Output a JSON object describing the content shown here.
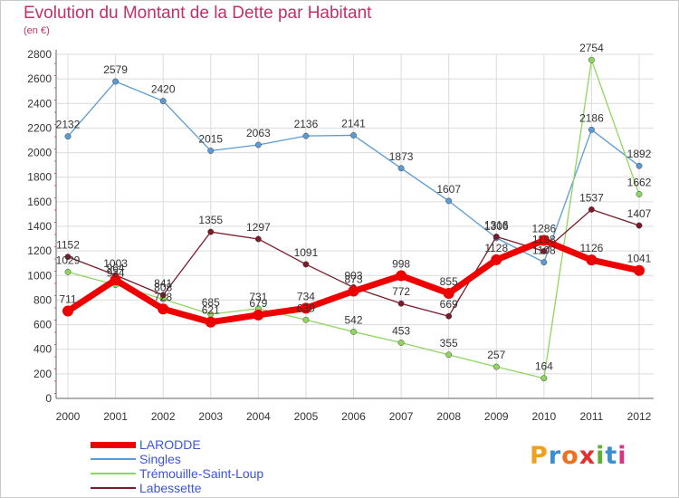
{
  "title": "Evolution du Montant de la Dette par Habitant",
  "subtitle": "(en €)",
  "logo": {
    "text": "Proxiti",
    "letters": [
      "P",
      "r",
      "o",
      "x",
      "i",
      "t",
      "i"
    ],
    "colors": [
      "#f0a020",
      "#3a8fd0",
      "#f07020",
      "#e03030",
      "#60b030",
      "#3a8fd0",
      "#e03080"
    ]
  },
  "chart_data": {
    "type": "line",
    "x": [
      "2000",
      "2001",
      "2002",
      "2003",
      "2004",
      "2005",
      "2006",
      "2007",
      "2008",
      "2009",
      "2010",
      "2011",
      "2012"
    ],
    "ylim": [
      0,
      2800
    ],
    "yticks": [
      "0",
      "200",
      "400",
      "600",
      "800",
      "1000",
      "1200",
      "1400",
      "1600",
      "1800",
      "2000",
      "2200",
      "2400",
      "2600",
      "2800"
    ],
    "grid": true,
    "legend_position": "bottom-left",
    "series": [
      {
        "name": "Singles",
        "color": "#5b9bd5",
        "values": [
          2132,
          2579,
          2420,
          2015,
          2063,
          2136,
          2141,
          1873,
          1607,
          1306,
          1108,
          2186,
          1892
        ],
        "labels": [
          "2132",
          "2579",
          "2420",
          "2015",
          "2063",
          "2136",
          "2141",
          "1873",
          "1607",
          "1306",
          "1108",
          "2186",
          "1892"
        ]
      },
      {
        "name": "Trémouille-Saint-Loup",
        "color": "#8fd660",
        "values": [
          1029,
          924,
          808,
          685,
          731,
          639,
          542,
          453,
          355,
          257,
          164,
          2754,
          1662
        ],
        "labels": [
          "1029",
          "924",
          "808",
          "685",
          "731",
          "639",
          "542",
          "453",
          "355",
          "257",
          "164",
          "2754",
          "1662"
        ]
      },
      {
        "name": "Labessette",
        "color": "#7a1a2a",
        "values": [
          1152,
          1003,
          841,
          1355,
          1297,
          1091,
          903,
          772,
          669,
          1316,
          1198,
          1537,
          1407
        ],
        "labels": [
          "1152",
          "1003",
          "841",
          "1355",
          "1297",
          "1091",
          "903",
          "772",
          "669",
          "1316",
          "1198",
          "1537",
          "1407"
        ]
      },
      {
        "name": "LARODDE",
        "color": "#ee0000",
        "values": [
          711,
          964,
          728,
          621,
          679,
          734,
          873,
          998,
          855,
          1128,
          1286,
          1126,
          1041
        ],
        "labels": [
          "711",
          "964",
          "728",
          "621",
          "679",
          "734",
          "873",
          "998",
          "855",
          "1128",
          "1286",
          "1126",
          "1041"
        ]
      }
    ],
    "legend": [
      {
        "name": "LARODDE",
        "color": "#ee0000"
      },
      {
        "name": "Singles",
        "color": "#5b9bd5"
      },
      {
        "name": "Trémouille-Saint-Loup",
        "color": "#8fd660"
      },
      {
        "name": "Labessette",
        "color": "#7a1a2a"
      }
    ]
  }
}
